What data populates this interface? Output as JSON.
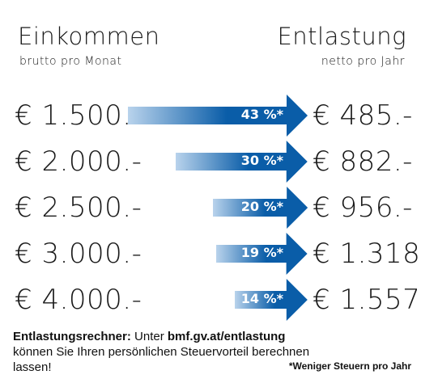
{
  "header": {
    "left_title": "Einkommen",
    "left_sub": "brutto pro Monat",
    "right_title": "Entlastung",
    "right_sub": "netto pro Jahr"
  },
  "chart_data": {
    "type": "bar",
    "title": "",
    "categories": [
      "€ 1.500.-",
      "€ 2.000.-",
      "€ 2.500.-",
      "€ 3.000.-",
      "€ 4.000.-"
    ],
    "series": [
      {
        "values": [
          43,
          30,
          20,
          19,
          14
        ],
        "labels": [
          "43 %*",
          "30 %*",
          "20 %*",
          "19 %*",
          "14 %*"
        ]
      }
    ],
    "relief_labels": [
      "€ 485.-",
      "€ 882.-",
      "€ 956.-",
      "€ 1.318.-",
      "€ 1.557.-"
    ],
    "ylim": [
      0,
      43
    ],
    "colors": {
      "arrow_dark": "#0a5da8",
      "arrow_light": "#b9d3ec"
    }
  },
  "footer": {
    "bold_lead": "Entlastungsrechner:",
    "text_1": " Unter ",
    "link": "bmf.gv.at/entlastung",
    "text_2": " können Sie Ihren persönlichen Steuervorteil berechnen lassen!",
    "footnote": "*Weniger Steuern pro Jahr"
  }
}
